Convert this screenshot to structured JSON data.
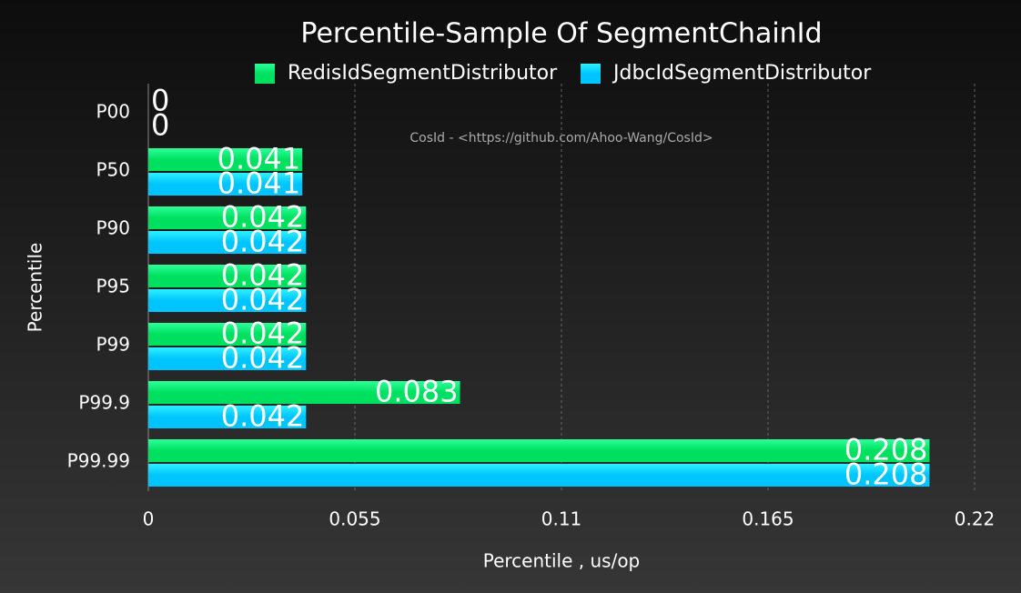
{
  "chart_data": {
    "type": "hbar",
    "title": "Percentile-Sample Of SegmentChainId",
    "annotation": "CosId - <https://github.com/Ahoo-Wang/CosId>",
    "xlabel": "Percentile , us/op",
    "ylabel": "Percentile",
    "categories": [
      "P00",
      "P50",
      "P90",
      "P95",
      "P99",
      "P99.9",
      "P99.99"
    ],
    "series": [
      {
        "name": "RedisIdSegmentDistributor",
        "color": "#00e060",
        "values": [
          0,
          0.041,
          0.042,
          0.042,
          0.042,
          0.083,
          0.208
        ]
      },
      {
        "name": "JdbcIdSegmentDistributor",
        "color": "#00c4ff",
        "values": [
          0,
          0.041,
          0.042,
          0.042,
          0.042,
          0.042,
          0.208
        ]
      }
    ],
    "xlim": [
      0,
      0.22
    ],
    "xticks": [
      0,
      0.055,
      0.11,
      0.165,
      0.22
    ],
    "grid": true
  }
}
